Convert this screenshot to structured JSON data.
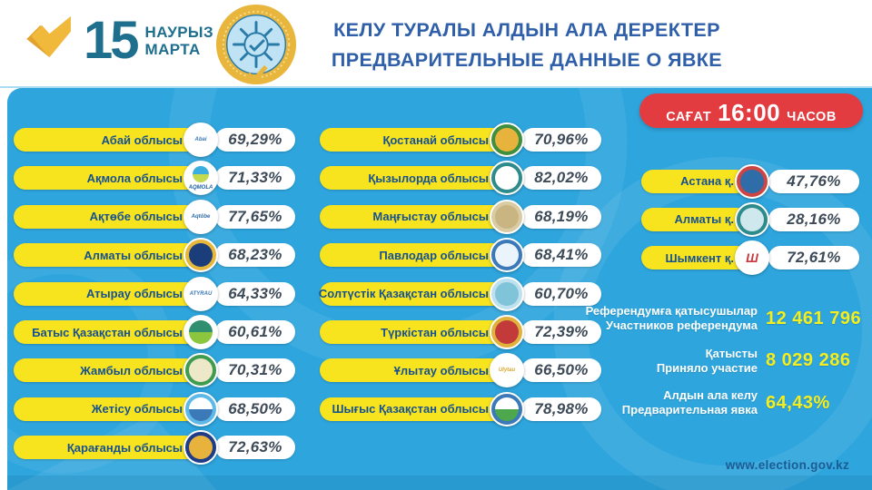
{
  "header": {
    "logo": {
      "day": "15",
      "month_line1": "НАУРЫЗ",
      "month_line2": "МАРТА"
    },
    "title_line1": "КЕЛУ ТУРАЛЫ АЛДЫН АЛА ДЕРЕКТЕР",
    "title_line2": "ПРЕДВАРИТЕЛЬНЫЕ ДАННЫЕ О ЯВКЕ"
  },
  "time_badge": {
    "prefix": "САҒАТ",
    "time": "16:00",
    "suffix": "ЧАСОВ"
  },
  "columns": {
    "col1": [
      {
        "label": "Абай облысы",
        "value": "69,29%",
        "emblem": {
          "name": "abai-region-emblem",
          "bg": "#ffffff",
          "center": "#ffffff",
          "label": "Abai",
          "label_color": "#3c7ab8"
        }
      },
      {
        "label": "Ақмола облысы",
        "value": "71,33%",
        "emblem": {
          "name": "aqmola-region-emblem",
          "bg": "#ffffff",
          "center": "#3aaede",
          "center2": "#c3d94e",
          "label": "AQMOLA",
          "label_color": "#1e5fa6"
        }
      },
      {
        "label": "Ақтөбе облысы",
        "value": "77,65%",
        "emblem": {
          "name": "aqtobe-region-emblem",
          "bg": "#ffffff",
          "center": "#ffffff",
          "label": "Aqtöbe",
          "label_color": "#2e6da8"
        }
      },
      {
        "label": "Алматы облысы",
        "value": "68,23%",
        "emblem": {
          "name": "almaty-region-emblem",
          "bg": "#e6b73c",
          "center": "#1b3e7a"
        }
      },
      {
        "label": "Атырау облысы",
        "value": "64,33%",
        "emblem": {
          "name": "atyrau-region-emblem",
          "bg": "#ffffff",
          "center": "#ffffff",
          "label": "ATYRAU",
          "label_color": "#3c7ab8"
        }
      },
      {
        "label": "Батыс Қазақстан облысы",
        "value": "60,61%",
        "emblem": {
          "name": "batys-qazaqstan-region-emblem",
          "bg": "#ffffff",
          "center": "#2f8f6e",
          "center2": "#8cc63f"
        }
      },
      {
        "label": "Жамбыл облысы",
        "value": "70,31%",
        "emblem": {
          "name": "zhambyl-region-emblem",
          "bg": "#3e9b4f",
          "center": "#ede8c8"
        }
      },
      {
        "label": "Жетісу облысы",
        "value": "68,50%",
        "emblem": {
          "name": "zhetisu-region-emblem",
          "bg": "#5fb9e8",
          "center": "#ffffff",
          "center2": "#3b79b8"
        }
      },
      {
        "label": "Қарағанды облысы",
        "value": "72,63%",
        "emblem": {
          "name": "karagandy-region-emblem",
          "bg": "#1f3c88",
          "center": "#e8b33c"
        }
      }
    ],
    "col2": [
      {
        "label": "Қостанай облысы",
        "value": "70,96%",
        "emblem": {
          "name": "kostanay-region-emblem",
          "bg": "#3e8f3e",
          "center": "#e8b33c"
        }
      },
      {
        "label": "Қызылорда облысы",
        "value": "82,02%",
        "emblem": {
          "name": "kyzylorda-region-emblem",
          "bg": "#2e8b8b",
          "center": "#ffffff"
        }
      },
      {
        "label": "Маңғыстау облысы",
        "value": "68,19%",
        "emblem": {
          "name": "mangystau-region-emblem",
          "bg": "#d9cba3",
          "center": "#c9b582"
        }
      },
      {
        "label": "Павлодар облысы",
        "value": "68,41%",
        "emblem": {
          "name": "pavlodar-region-emblem",
          "bg": "#3b79b8",
          "center": "#eaf4fa"
        }
      },
      {
        "label": "Солтүстік Қазақстан облысы",
        "value": "60,70%",
        "emblem": {
          "name": "soltustik-qazaqstan-region-emblem",
          "bg": "#bfe0ee",
          "center": "#7fc4d8"
        }
      },
      {
        "label": "Түркістан облысы",
        "value": "72,39%",
        "emblem": {
          "name": "turkistan-region-emblem",
          "bg": "#e0b23c",
          "center": "#c23a3a"
        }
      },
      {
        "label": "Ұлытау облысы",
        "value": "66,50%",
        "emblem": {
          "name": "ulytau-region-emblem",
          "bg": "#ffffff",
          "center": "#ffffff",
          "label": "Ulytau",
          "label_color": "#d8a830"
        }
      },
      {
        "label": "Шығыс Қазақстан облысы",
        "value": "78,98%",
        "emblem": {
          "name": "shygys-qazaqstan-region-emblem",
          "bg": "#3b79b8",
          "center": "#ffffff",
          "center2": "#4da84d"
        }
      }
    ],
    "cities": [
      {
        "label": "Астана қ.",
        "value": "47,76%",
        "emblem": {
          "name": "astana-city-emblem",
          "bg": "#cc4444",
          "center": "#2e6da8"
        }
      },
      {
        "label": "Алматы қ.",
        "value": "28,16%",
        "emblem": {
          "name": "almaty-city-emblem",
          "bg": "#2e8b8b",
          "center": "#cfe8ee"
        }
      },
      {
        "label": "Шымкент қ.",
        "value": "72,61%",
        "emblem": {
          "name": "shymkent-city-emblem",
          "bg": "#ffffff",
          "center": "#ffffff",
          "label": "Ш",
          "label_color": "#c8373c"
        }
      }
    ]
  },
  "summary": [
    {
      "label_kk": "Референдумға қатысушылар",
      "label_ru": "Участников референдума",
      "value": "12 461 796"
    },
    {
      "label_kk": "Қатысты",
      "label_ru": "Приняло участие",
      "value": "8 029 286"
    },
    {
      "label_kk": "Алдын ала келу",
      "label_ru": "Предварительная явка",
      "value": "64,43%"
    }
  ],
  "footer": {
    "website": "www.election.gov.kz"
  },
  "colors": {
    "panel_blue": "#2ea5dd",
    "pill_yellow": "#f7e41f",
    "label_blue": "#17518f",
    "pct_dark": "#3d4a57",
    "badge_red": "#e23c40",
    "accent_yellow": "#f5ee1e",
    "title_blue": "#2f5fa8",
    "logo_teal": "#1e6e8e",
    "logo_gold": "#f0b93b"
  }
}
